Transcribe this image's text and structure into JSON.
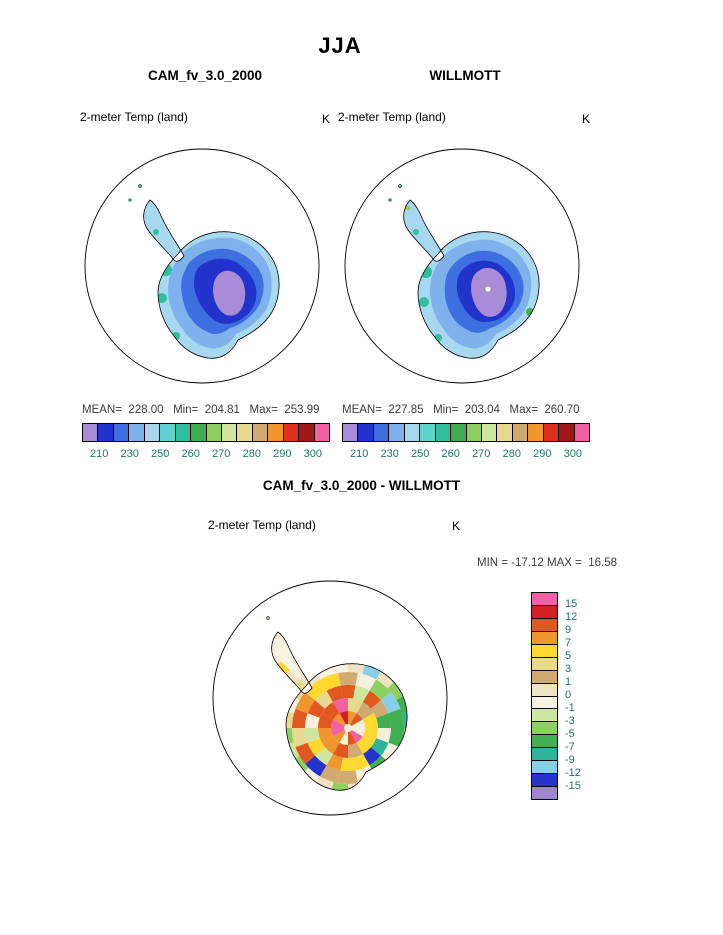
{
  "title": "JJA",
  "panels": {
    "left": {
      "header": "CAM_fv_3.0_2000",
      "field": "2-meter Temp (land)",
      "units": "K",
      "stats": "MEAN=  228.00   Min=  204.81   Max=  253.99"
    },
    "right": {
      "header": "WILLMOTT",
      "field": "2-meter Temp (land)",
      "units": "K",
      "stats": "MEAN=  227.85   Min=  203.04   Max=  260.70"
    },
    "diff": {
      "header": "CAM_fv_3.0_2000 - WILLMOTT",
      "field": "2-meter Temp (land)",
      "units": "K",
      "stats": "MIN = -17.12 MAX =  16.58"
    }
  },
  "colorbar_top": {
    "colors": [
      "#a98cd6",
      "#2233cc",
      "#3d6fe0",
      "#7fb2ec",
      "#a8d8f0",
      "#5fd4cf",
      "#2fbf9f",
      "#3fae50",
      "#8fcf5f",
      "#cfe69f",
      "#e8d890",
      "#d0aa70",
      "#f0962f",
      "#e03020",
      "#a01818",
      "#f361a5"
    ],
    "ticks": [
      "210",
      "230",
      "250",
      "260",
      "270",
      "280",
      "290",
      "300"
    ]
  },
  "colorbar_diff": {
    "colors": [
      "#f361a5",
      "#d42020",
      "#e0581f",
      "#f0962f",
      "#ffd92f",
      "#e8d890",
      "#d0aa70",
      "#efe3c4",
      "#f7f3e3",
      "#cfe69f",
      "#8fcf5f",
      "#3faf50",
      "#2fb39a",
      "#87cfe4",
      "#2633cc",
      "#9f86d0"
    ],
    "labels": [
      "15",
      "12",
      "9",
      "7",
      "5",
      "3",
      "1",
      "0",
      "-1",
      "-3",
      "-5",
      "-7",
      "-9",
      "-12",
      "-15"
    ]
  },
  "chart_data": {
    "type": "heatmap",
    "title": "JJA",
    "region": "Antarctica (south polar view)",
    "panels": [
      {
        "name": "CAM_fv_3.0_2000",
        "variable": "2-meter Temp (land)",
        "units": "K",
        "season": "JJA",
        "mean": 228.0,
        "min": 204.81,
        "max": 253.99,
        "colorbar_ticks": [
          210,
          230,
          250,
          260,
          270,
          280,
          290,
          300
        ]
      },
      {
        "name": "WILLMOTT",
        "variable": "2-meter Temp (land)",
        "units": "K",
        "season": "JJA",
        "mean": 227.85,
        "min": 203.04,
        "max": 260.7,
        "colorbar_ticks": [
          210,
          230,
          250,
          260,
          270,
          280,
          290,
          300
        ]
      },
      {
        "name": "CAM_fv_3.0_2000 - WILLMOTT",
        "variable": "2-meter Temp (land)",
        "units": "K",
        "season": "JJA",
        "min": -17.12,
        "max": 16.58,
        "colorbar_levels": [
          15,
          12,
          9,
          7,
          5,
          3,
          1,
          0,
          -1,
          -3,
          -5,
          -7,
          -9,
          -12,
          -15
        ]
      }
    ]
  }
}
